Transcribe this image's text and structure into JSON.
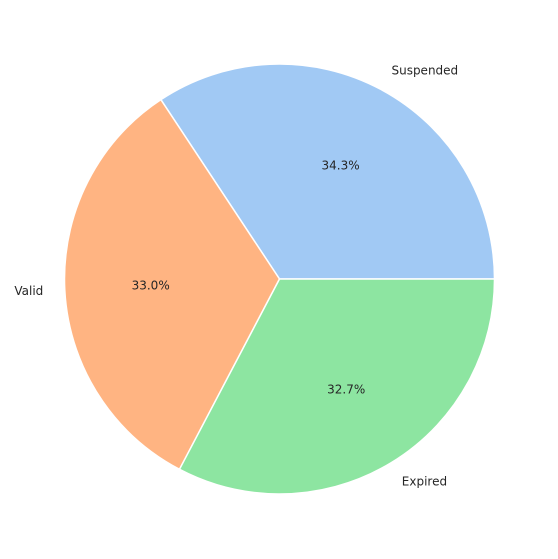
{
  "chart_data": {
    "type": "pie",
    "title": "",
    "slices": [
      {
        "label": "Suspended",
        "value": 34.3,
        "pct_label": "34.3%",
        "color": "#a1c9f4"
      },
      {
        "label": "Valid",
        "value": 33.0,
        "pct_label": "33.0%",
        "color": "#ffb482"
      },
      {
        "label": "Expired",
        "value": 32.7,
        "pct_label": "32.7%",
        "color": "#8de5a1"
      }
    ],
    "start_angle_deg": 0,
    "direction": "counterclockwise",
    "wedge_edge_color": "#ffffff"
  }
}
